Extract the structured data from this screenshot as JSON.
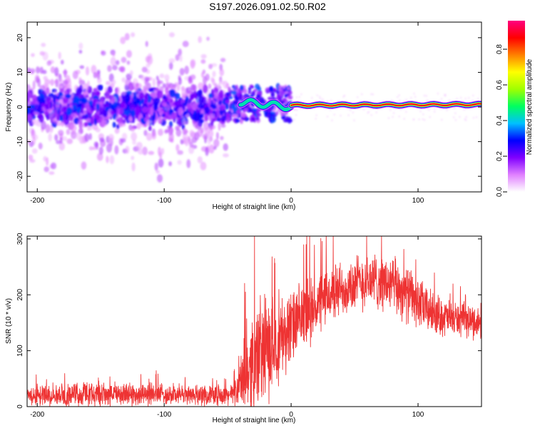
{
  "title": "S197.2026.091.02.50.R02",
  "chart_data": [
    {
      "type": "heatmap",
      "xlabel": "Height of straight line (km)",
      "ylabel": "Frequency (Hz)",
      "xlim": [
        -208,
        150
      ],
      "ylim": [
        -24.5,
        24.5
      ],
      "x_ticks": [
        -200,
        -100,
        0,
        100
      ],
      "x_tick_labels": [
        "-200",
        "-100",
        "0",
        "100"
      ],
      "y_ticks": [
        -20,
        -10,
        0,
        10,
        20
      ],
      "y_tick_labels": [
        "-20",
        "-10",
        "0",
        "10",
        "20"
      ],
      "colorbar": {
        "label": "Normalized spectral amplitude",
        "range": [
          0,
          0.96
        ],
        "ticks": [
          0.0,
          0.2,
          0.4,
          0.6,
          0.8
        ],
        "tick_labels": [
          "0.0",
          "0.2",
          "0.4",
          "0.6",
          "0.8"
        ],
        "colormap": [
          "#ffffff",
          "#e080ff",
          "#8000ff",
          "#0000ff",
          "#00c0ff",
          "#00ff60",
          "#a0ff00",
          "#ffff00",
          "#ff8000",
          "#ff0000",
          "#ff0080"
        ]
      },
      "ridge": {
        "description": "strong narrow line near 0 Hz above -40 km",
        "segments": [
          {
            "x": [
              -40,
              0
            ],
            "freq": [
              1.5,
              0.0
            ],
            "amplitude": 0.45
          },
          {
            "x": [
              0,
              150
            ],
            "freq": [
              0.5,
              0.7
            ],
            "amplitude": 0.92
          }
        ],
        "noise_region_x": [
          -208,
          -50
        ],
        "noise_freq_range": [
          -24.5,
          24.5
        ]
      }
    },
    {
      "type": "line",
      "xlabel": "Height of straight line (km)",
      "ylabel": "SNR (10 * v/v)",
      "xlim": [
        -208,
        150
      ],
      "ylim": [
        0,
        305
      ],
      "x_ticks": [
        -200,
        -100,
        0,
        100
      ],
      "x_tick_labels": [
        "-200",
        "-100",
        "0",
        "100"
      ],
      "y_ticks": [
        0,
        100,
        200,
        300
      ],
      "y_tick_labels": [
        "0",
        "100",
        "200",
        "300"
      ],
      "series": [
        {
          "name": "SNR",
          "color": "#ee3333",
          "envelope": {
            "x": [
              -208,
              -150,
              -100,
              -60,
              -45,
              -38,
              -30,
              -20,
              -10,
              0,
              10,
              20,
              30,
              40,
              50,
              60,
              70,
              80,
              90,
              100,
              110,
              120,
              135,
              150
            ],
            "mean": [
              20,
              22,
              22,
              20,
              22,
              50,
              80,
              100,
              120,
              140,
              160,
              180,
              200,
              210,
              220,
              225,
              225,
              215,
              205,
              185,
              170,
              160,
              155,
              150
            ],
            "spread": [
              20,
              25,
              22,
              20,
              20,
              70,
              110,
              110,
              90,
              80,
              70,
              65,
              60,
              60,
              60,
              60,
              60,
              60,
              60,
              55,
              45,
              40,
              35,
              35
            ]
          }
        }
      ]
    }
  ]
}
